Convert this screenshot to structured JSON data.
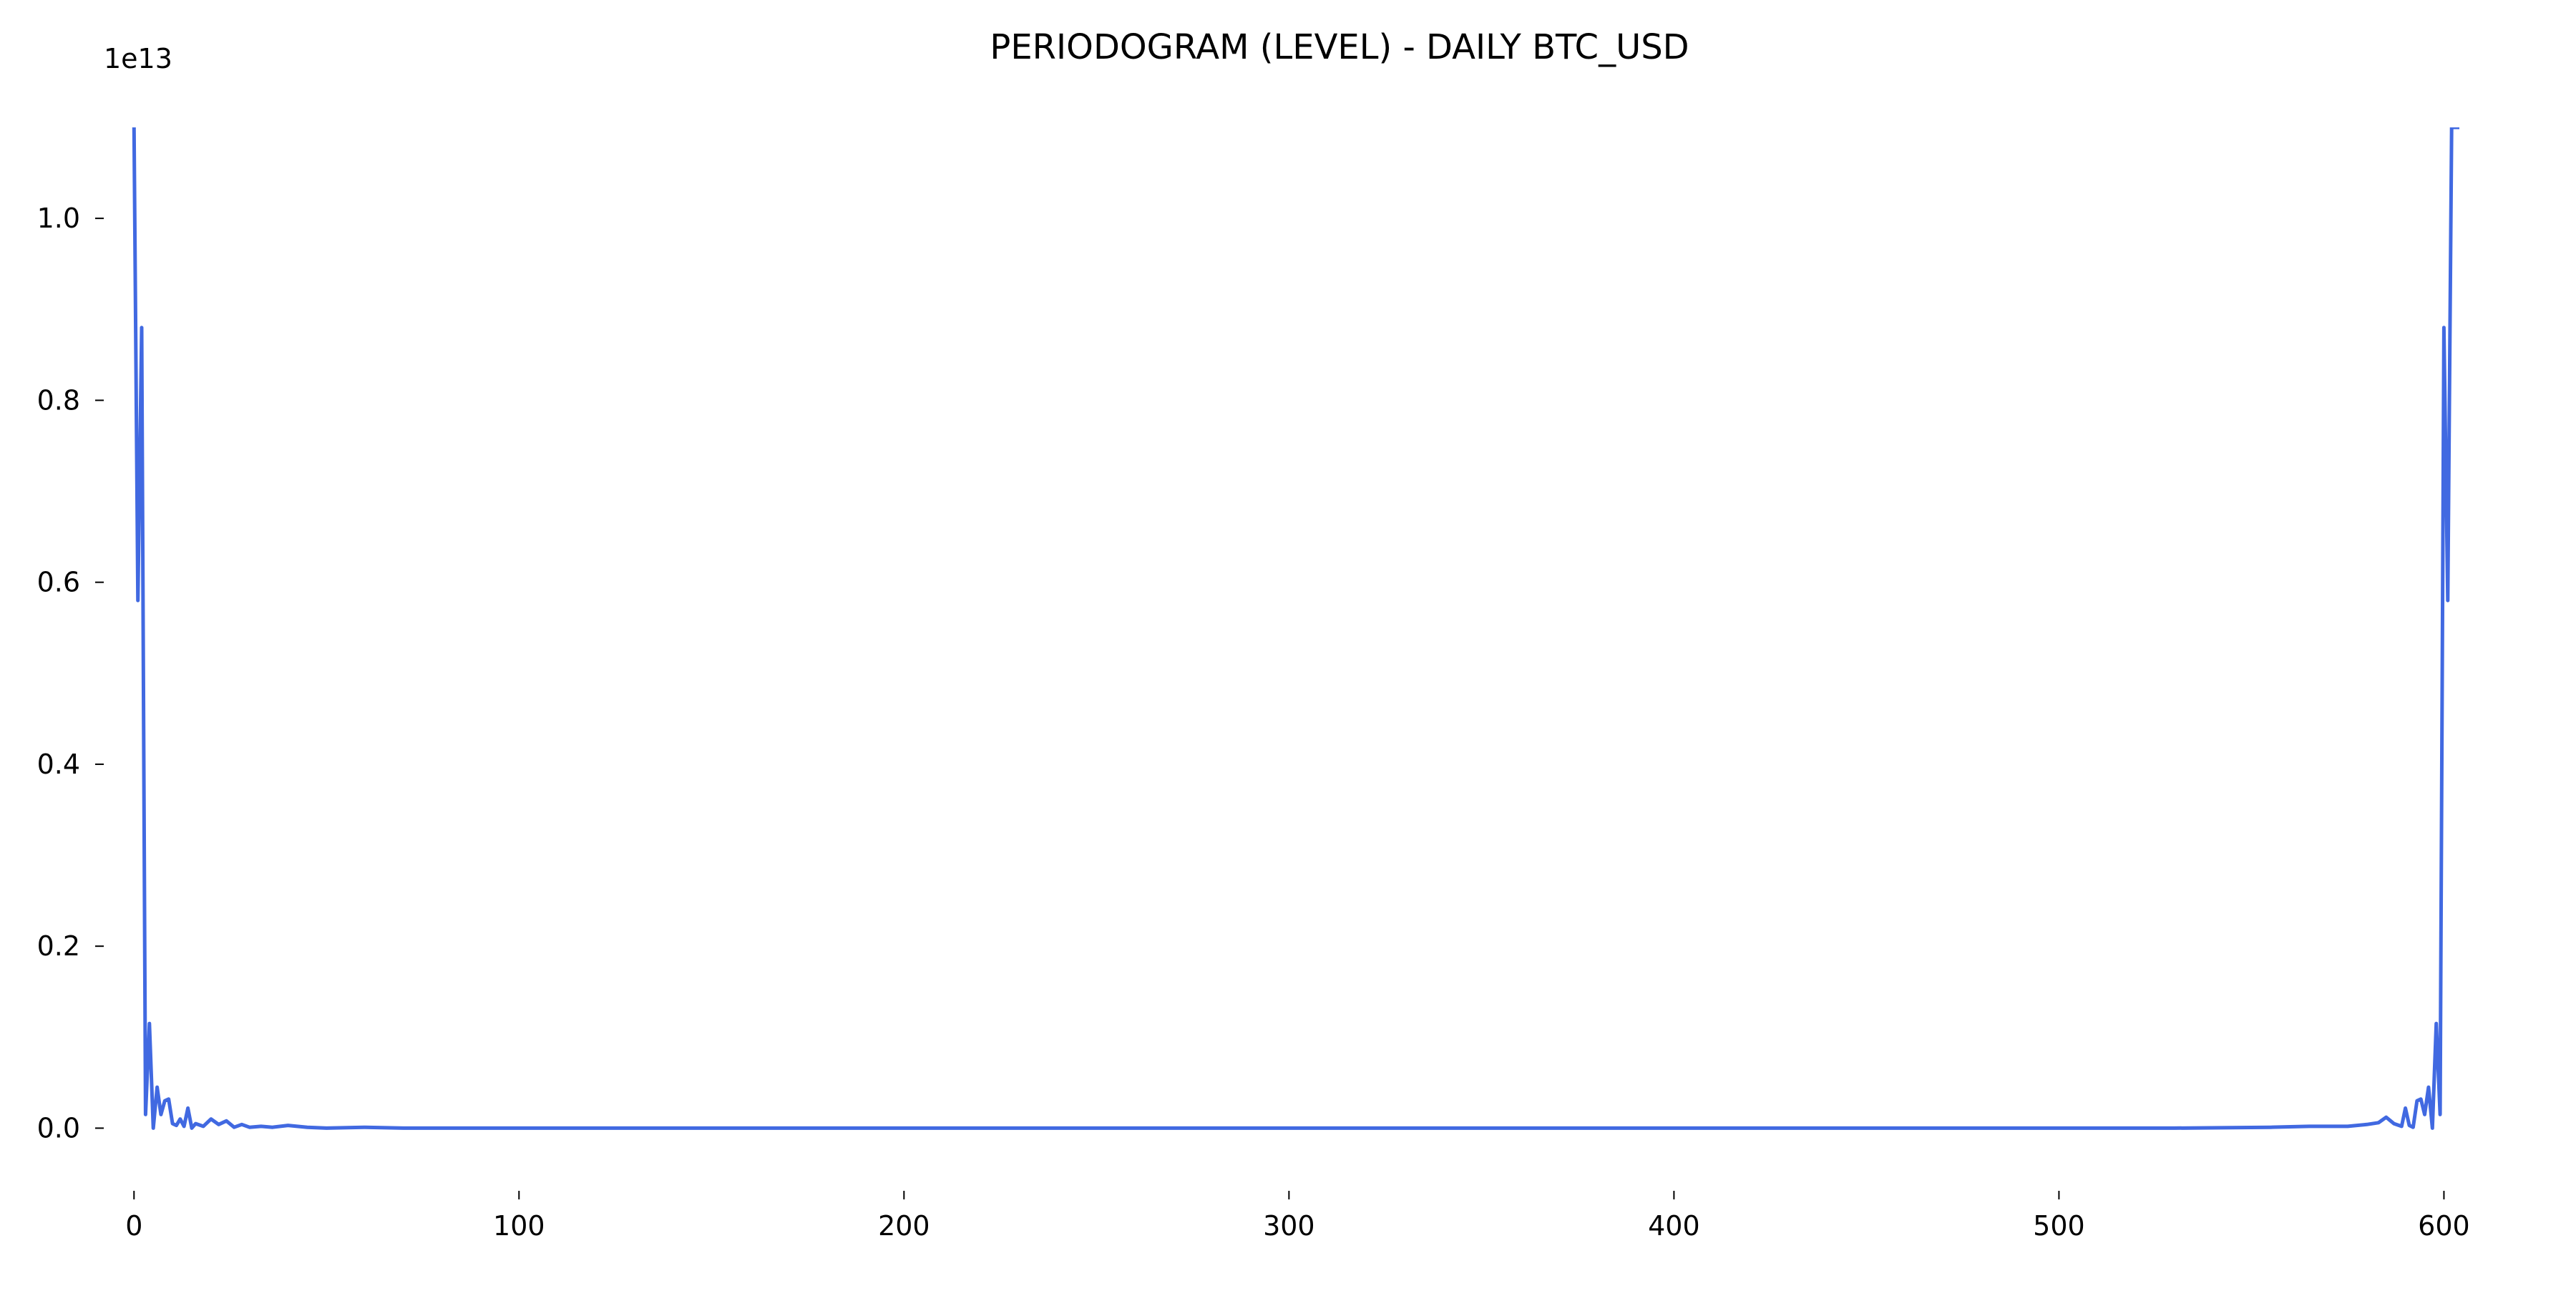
{
  "chart_data": {
    "type": "line",
    "title": "PERIODOGRAM (LEVEL) - DAILY BTC_USD",
    "xlabel": "",
    "ylabel": "",
    "y_offset_label": "1e13",
    "y_scale_factor": 10000000000000.0,
    "xlim": [
      -6,
      612
    ],
    "ylim": [
      -0.05,
      1.1
    ],
    "grid": false,
    "x_ticks": [
      0,
      100,
      200,
      300,
      400,
      500,
      600
    ],
    "x_tick_labels": [
      "0",
      "100",
      "200",
      "300",
      "400",
      "500",
      "600"
    ],
    "y_ticks": [
      0.0,
      0.2,
      0.4,
      0.6,
      0.8,
      1.0
    ],
    "y_tick_labels": [
      "0.0",
      "0.2",
      "0.4",
      "0.6",
      "0.8",
      "1.0"
    ],
    "series": [
      {
        "color": "#4169e1",
        "x": [
          0,
          1,
          2,
          3,
          4,
          5,
          6,
          7,
          8,
          9,
          10,
          11,
          12,
          13,
          14,
          15,
          16,
          18,
          20,
          22,
          24,
          26,
          28,
          30,
          33,
          36,
          40,
          45,
          50,
          60,
          70,
          80,
          100,
          150,
          200,
          250,
          300,
          350,
          400,
          450,
          500,
          530,
          555,
          565,
          575,
          580,
          583,
          585,
          587,
          589,
          590,
          591,
          592,
          593,
          594,
          595,
          596,
          597,
          598,
          599,
          600,
          601,
          602,
          603,
          604
        ],
        "y": [
          1.1,
          0.58,
          0.88,
          0.015,
          0.115,
          0.0,
          0.045,
          0.015,
          0.03,
          0.032,
          0.005,
          0.003,
          0.01,
          0.002,
          0.022,
          0.0,
          0.005,
          0.002,
          0.01,
          0.004,
          0.008,
          0.001,
          0.004,
          0.001,
          0.002,
          0.001,
          0.003,
          0.001,
          0.0,
          0.001,
          0.0,
          0.0,
          0.0,
          0.0,
          0.0,
          0.0,
          0.0,
          0.0,
          0.0,
          0.0,
          0.0,
          0.0,
          0.001,
          0.002,
          0.002,
          0.004,
          0.006,
          0.012,
          0.005,
          0.002,
          0.022,
          0.003,
          0.001,
          0.03,
          0.032,
          0.015,
          0.045,
          0.0,
          0.115,
          0.015,
          0.88,
          0.58,
          1.1,
          1.1,
          1.1
        ]
      }
    ]
  }
}
